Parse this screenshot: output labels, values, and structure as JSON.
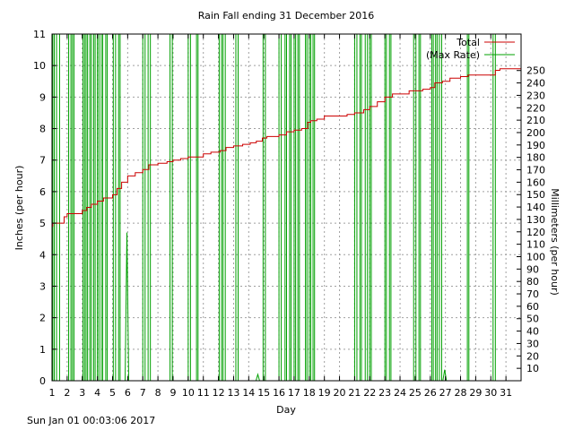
{
  "chart_data": {
    "type": "line",
    "title": "Rain Fall ending 31 December 2016",
    "xlabel": "Day",
    "ylabel": "Inches (per hour)",
    "y2label": "Millimeters (per hour)",
    "xlim": [
      1,
      32
    ],
    "ylim": [
      0,
      11
    ],
    "y2lim": [
      0,
      279.4
    ],
    "xticks": [
      1,
      2,
      3,
      4,
      5,
      6,
      7,
      8,
      9,
      10,
      11,
      12,
      13,
      14,
      15,
      16,
      17,
      18,
      19,
      20,
      21,
      22,
      23,
      24,
      25,
      26,
      27,
      28,
      29,
      30,
      31
    ],
    "yticks": [
      0,
      1,
      2,
      3,
      4,
      5,
      6,
      7,
      8,
      9,
      10,
      11
    ],
    "y2ticks": [
      10,
      20,
      30,
      40,
      50,
      60,
      70,
      80,
      90,
      100,
      110,
      120,
      130,
      140,
      150,
      160,
      170,
      180,
      190,
      200,
      210,
      220,
      230,
      240,
      250
    ],
    "grid": true,
    "legend": "top-right",
    "series": [
      {
        "name": "Total",
        "color": "#cc0000",
        "style": "step",
        "points": [
          [
            1.0,
            4.9
          ],
          [
            1.05,
            5.0
          ],
          [
            1.8,
            5.2
          ],
          [
            2.0,
            5.3
          ],
          [
            3.0,
            5.4
          ],
          [
            3.3,
            5.5
          ],
          [
            3.6,
            5.6
          ],
          [
            4.0,
            5.7
          ],
          [
            4.4,
            5.8
          ],
          [
            5.0,
            5.9
          ],
          [
            5.3,
            6.1
          ],
          [
            5.6,
            6.3
          ],
          [
            6.0,
            6.5
          ],
          [
            6.5,
            6.6
          ],
          [
            7.0,
            6.7
          ],
          [
            7.4,
            6.85
          ],
          [
            8.0,
            6.9
          ],
          [
            8.6,
            6.95
          ],
          [
            9.0,
            7.0
          ],
          [
            9.5,
            7.05
          ],
          [
            10.0,
            7.1
          ],
          [
            11.0,
            7.2
          ],
          [
            11.5,
            7.25
          ],
          [
            12.1,
            7.3
          ],
          [
            12.5,
            7.4
          ],
          [
            13.0,
            7.45
          ],
          [
            13.6,
            7.5
          ],
          [
            14.1,
            7.55
          ],
          [
            14.5,
            7.6
          ],
          [
            14.9,
            7.7
          ],
          [
            15.2,
            7.75
          ],
          [
            16.0,
            7.8
          ],
          [
            16.5,
            7.9
          ],
          [
            17.0,
            7.95
          ],
          [
            17.5,
            8.0
          ],
          [
            17.9,
            8.2
          ],
          [
            18.1,
            8.25
          ],
          [
            18.5,
            8.3
          ],
          [
            19.0,
            8.4
          ],
          [
            20.0,
            8.4
          ],
          [
            20.5,
            8.45
          ],
          [
            21.0,
            8.5
          ],
          [
            21.6,
            8.6
          ],
          [
            22.0,
            8.7
          ],
          [
            22.5,
            8.85
          ],
          [
            23.0,
            9.0
          ],
          [
            23.5,
            9.1
          ],
          [
            24.0,
            9.1
          ],
          [
            24.6,
            9.2
          ],
          [
            25.5,
            9.25
          ],
          [
            26.0,
            9.3
          ],
          [
            26.3,
            9.45
          ],
          [
            26.8,
            9.5
          ],
          [
            27.3,
            9.6
          ],
          [
            28.0,
            9.65
          ],
          [
            28.5,
            9.7
          ],
          [
            29.0,
            9.7
          ],
          [
            30.1,
            9.7
          ],
          [
            30.3,
            9.85
          ],
          [
            30.6,
            9.9
          ],
          [
            31.5,
            9.9
          ],
          [
            32.0,
            9.85
          ]
        ]
      },
      {
        "name": "(Max Rate)",
        "color": "#00a000",
        "style": "pulses",
        "spikes": [
          [
            1.05,
            1.15
          ],
          [
            1.3,
            1.5
          ],
          [
            2.1,
            2.25
          ],
          [
            2.35,
            2.45
          ],
          [
            3.05,
            3.15
          ],
          [
            3.25,
            3.35
          ],
          [
            3.5,
            3.6
          ],
          [
            3.75,
            3.85
          ],
          [
            4.0,
            4.1
          ],
          [
            4.25,
            4.35
          ],
          [
            4.55,
            4.65
          ],
          [
            5.05,
            5.2
          ],
          [
            5.4,
            5.5
          ],
          [
            7.0,
            7.15
          ],
          [
            7.35,
            7.5
          ],
          [
            8.8,
            8.95
          ],
          [
            10.0,
            10.15
          ],
          [
            10.55,
            10.65
          ],
          [
            12.05,
            12.2
          ],
          [
            12.3,
            12.45
          ],
          [
            13.15,
            13.3
          ],
          [
            14.95,
            15.1
          ],
          [
            16.0,
            16.15
          ],
          [
            16.4,
            16.5
          ],
          [
            16.7,
            16.8
          ],
          [
            17.0,
            17.1
          ],
          [
            17.25,
            17.35
          ],
          [
            17.75,
            17.85
          ],
          [
            18.0,
            18.1
          ],
          [
            18.25,
            18.35
          ],
          [
            21.0,
            21.15
          ],
          [
            21.35,
            21.45
          ],
          [
            21.7,
            21.85
          ],
          [
            22.0,
            22.1
          ],
          [
            23.0,
            23.1
          ],
          [
            23.3,
            23.4
          ],
          [
            24.9,
            25.05
          ],
          [
            25.25,
            25.35
          ],
          [
            26.1,
            26.2
          ],
          [
            26.35,
            26.45
          ],
          [
            26.6,
            26.75
          ],
          [
            28.45,
            28.55
          ],
          [
            30.15,
            30.3
          ]
        ],
        "partial_spikes": [
          [
            5.95,
            4.7
          ],
          [
            14.6,
            0.2
          ],
          [
            26.95,
            0.35
          ]
        ]
      }
    ]
  },
  "timestamp": "Sun Jan 01 00:03:06 2017"
}
